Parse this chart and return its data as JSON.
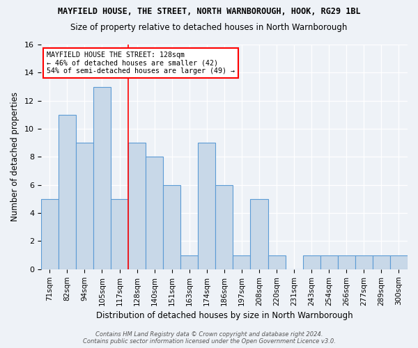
{
  "title": "MAYFIELD HOUSE, THE STREET, NORTH WARNBOROUGH, HOOK, RG29 1BL",
  "subtitle": "Size of property relative to detached houses in North Warnborough",
  "xlabel": "Distribution of detached houses by size in North Warnborough",
  "ylabel": "Number of detached properties",
  "categories": [
    "71sqm",
    "82sqm",
    "94sqm",
    "105sqm",
    "117sqm",
    "128sqm",
    "140sqm",
    "151sqm",
    "163sqm",
    "174sqm",
    "186sqm",
    "197sqm",
    "208sqm",
    "220sqm",
    "231sqm",
    "243sqm",
    "254sqm",
    "266sqm",
    "277sqm",
    "289sqm",
    "300sqm"
  ],
  "values": [
    5,
    11,
    9,
    13,
    5,
    9,
    8,
    6,
    1,
    9,
    6,
    1,
    5,
    1,
    0,
    1,
    1,
    1,
    1,
    1,
    1
  ],
  "bar_color": "#c8d8e8",
  "bar_edge_color": "#5b9bd5",
  "red_line_index": 5,
  "ylim": [
    0,
    16
  ],
  "yticks": [
    0,
    2,
    4,
    6,
    8,
    10,
    12,
    14,
    16
  ],
  "annotation_title": "MAYFIELD HOUSE THE STREET: 128sqm",
  "annotation_line1": "← 46% of detached houses are smaller (42)",
  "annotation_line2": "54% of semi-detached houses are larger (49) →",
  "footer1": "Contains HM Land Registry data © Crown copyright and database right 2024.",
  "footer2": "Contains public sector information licensed under the Open Government Licence v3.0.",
  "bg_color": "#eef2f7",
  "plot_bg_color": "#eef2f7"
}
